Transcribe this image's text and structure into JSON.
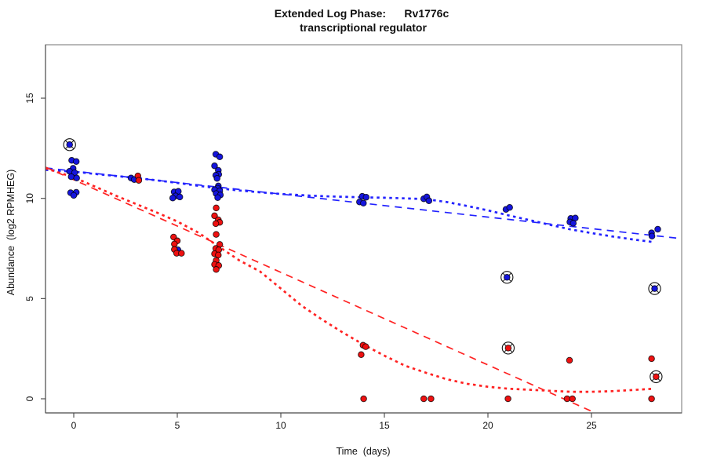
{
  "title": {
    "line1": "Extended Log Phase:      Rv1776c",
    "line2": "transcriptional regulator"
  },
  "axes": {
    "x": {
      "label": "Time  (days)",
      "ticks": [
        0,
        5,
        10,
        15,
        20,
        25
      ]
    },
    "y": {
      "label": "Abundance  (log2 RPMHEG)",
      "ticks": [
        0,
        5,
        10,
        15
      ]
    }
  },
  "colors": {
    "blue": "#1515dd",
    "red": "#ee1111",
    "blue_line": "#2222ff",
    "red_line": "#ff2222",
    "marker_outline": "#000000"
  },
  "chart_data": {
    "type": "scatter",
    "title": "Extended Log Phase: Rv1776c transcriptional regulator",
    "xlabel": "Time (days)",
    "ylabel": "Abundance (log2 RPMHEG)",
    "xlim": [
      -1.364,
      29.356
    ],
    "ylim": [
      -0.705,
      17.665
    ],
    "grid": false,
    "legend": "none",
    "series": [
      {
        "name": "blue",
        "points": [
          [
            -0.1,
            11.9
          ],
          [
            0.12,
            11.84
          ],
          [
            -0.03,
            11.5
          ],
          [
            -0.2,
            11.35
          ],
          [
            0.04,
            11.28
          ],
          [
            -0.12,
            11.08
          ],
          [
            0.14,
            11.02
          ],
          [
            -0.15,
            10.28
          ],
          [
            0.12,
            10.3
          ],
          [
            0.0,
            10.15
          ],
          [
            2.77,
            11.02
          ],
          [
            2.92,
            10.94
          ],
          [
            4.85,
            10.32
          ],
          [
            5.05,
            10.35
          ],
          [
            4.92,
            10.12
          ],
          [
            5.12,
            10.07
          ],
          [
            4.78,
            10.02
          ],
          [
            5.03,
            7.43
          ],
          [
            6.86,
            12.2
          ],
          [
            7.05,
            12.07
          ],
          [
            6.8,
            11.62
          ],
          [
            6.98,
            11.4
          ],
          [
            7.0,
            11.2
          ],
          [
            6.86,
            11.15
          ],
          [
            6.92,
            11.0
          ],
          [
            6.98,
            10.62
          ],
          [
            6.95,
            10.5
          ],
          [
            6.8,
            10.43
          ],
          [
            7.05,
            10.37
          ],
          [
            6.88,
            10.24
          ],
          [
            7.08,
            10.17
          ],
          [
            6.95,
            10.04
          ],
          [
            13.93,
            10.1
          ],
          [
            14.12,
            10.06
          ],
          [
            13.8,
            9.82
          ],
          [
            13.99,
            9.76
          ],
          [
            16.9,
            9.98
          ],
          [
            17.05,
            10.07
          ],
          [
            17.15,
            9.88
          ],
          [
            20.87,
            9.45
          ],
          [
            21.05,
            9.55
          ],
          [
            24.0,
            9.0
          ],
          [
            24.22,
            9.02
          ],
          [
            23.96,
            8.82
          ],
          [
            24.12,
            8.76
          ],
          [
            28.2,
            8.46
          ],
          [
            27.9,
            8.28
          ],
          [
            27.92,
            8.12
          ]
        ],
        "circled_points": [
          [
            -0.2,
            12.68
          ],
          [
            20.92,
            6.06
          ],
          [
            28.05,
            5.5
          ]
        ]
      },
      {
        "name": "red",
        "points": [
          [
            3.1,
            11.12
          ],
          [
            3.14,
            10.9
          ],
          [
            4.82,
            8.07
          ],
          [
            5.0,
            7.88
          ],
          [
            4.86,
            7.72
          ],
          [
            4.86,
            7.45
          ],
          [
            4.97,
            7.26
          ],
          [
            5.2,
            7.26
          ],
          [
            6.88,
            9.52
          ],
          [
            6.8,
            9.13
          ],
          [
            6.98,
            8.93
          ],
          [
            7.05,
            8.8
          ],
          [
            6.86,
            8.74
          ],
          [
            6.88,
            8.2
          ],
          [
            7.05,
            7.7
          ],
          [
            6.86,
            7.5
          ],
          [
            7.0,
            7.43
          ],
          [
            6.8,
            7.24
          ],
          [
            6.98,
            7.17
          ],
          [
            6.88,
            6.9
          ],
          [
            6.8,
            6.7
          ],
          [
            7.0,
            6.65
          ],
          [
            6.88,
            6.45
          ],
          [
            13.97,
            2.67
          ],
          [
            14.1,
            2.6
          ],
          [
            13.88,
            2.2
          ],
          [
            14.0,
            0.0
          ],
          [
            16.9,
            0.0
          ],
          [
            17.25,
            0.0
          ],
          [
            20.97,
            0.0
          ],
          [
            23.94,
            1.92
          ],
          [
            23.82,
            0.0
          ],
          [
            24.08,
            0.0
          ],
          [
            27.9,
            2.0
          ],
          [
            27.9,
            0.0
          ]
        ],
        "circled_points": [
          [
            20.98,
            2.53
          ],
          [
            28.12,
            1.1
          ]
        ]
      }
    ],
    "trend_lines": [
      {
        "name": "blue_linear_fit",
        "color": "blue",
        "style": "longdash",
        "points": [
          [
            -1.364,
            11.52
          ],
          [
            29.356,
            7.99
          ]
        ]
      },
      {
        "name": "blue_loess_fit",
        "color": "blue",
        "style": "dotted",
        "points": [
          [
            -1.364,
            11.42
          ],
          [
            0,
            11.33
          ],
          [
            1,
            11.22
          ],
          [
            2,
            11.12
          ],
          [
            3,
            11.02
          ],
          [
            4,
            10.9
          ],
          [
            5,
            10.77
          ],
          [
            6,
            10.63
          ],
          [
            7,
            10.5
          ],
          [
            8,
            10.39
          ],
          [
            9,
            10.3
          ],
          [
            10,
            10.22
          ],
          [
            11,
            10.16
          ],
          [
            12,
            10.11
          ],
          [
            13,
            10.08
          ],
          [
            14,
            10.05
          ],
          [
            15,
            10.03
          ],
          [
            16,
            10.0
          ],
          [
            17,
            9.96
          ],
          [
            18,
            9.82
          ],
          [
            19,
            9.62
          ],
          [
            20,
            9.4
          ],
          [
            21,
            9.15
          ],
          [
            22,
            8.92
          ],
          [
            23,
            8.68
          ],
          [
            24,
            8.45
          ],
          [
            25,
            8.27
          ],
          [
            26,
            8.1
          ],
          [
            27,
            7.95
          ],
          [
            28,
            7.82
          ]
        ]
      },
      {
        "name": "red_linear_fit",
        "color": "red",
        "style": "longdash",
        "points": [
          [
            -1.364,
            11.56
          ],
          [
            25.18,
            -0.705
          ]
        ]
      },
      {
        "name": "red_loess_fit",
        "color": "red",
        "style": "dotted",
        "points": [
          [
            -1.364,
            11.5
          ],
          [
            0,
            11.05
          ],
          [
            1,
            10.6
          ],
          [
            2,
            10.15
          ],
          [
            3,
            9.72
          ],
          [
            4,
            9.3
          ],
          [
            5,
            8.85
          ],
          [
            6,
            8.3
          ],
          [
            7,
            7.6
          ],
          [
            8,
            6.9
          ],
          [
            9,
            6.35
          ],
          [
            10,
            5.5
          ],
          [
            11,
            4.65
          ],
          [
            12,
            3.95
          ],
          [
            13,
            3.3
          ],
          [
            14,
            2.7
          ],
          [
            15,
            2.15
          ],
          [
            16,
            1.65
          ],
          [
            17,
            1.3
          ],
          [
            18,
            0.98
          ],
          [
            19,
            0.75
          ],
          [
            20,
            0.6
          ],
          [
            21,
            0.5
          ],
          [
            22,
            0.45
          ],
          [
            23,
            0.4
          ],
          [
            24,
            0.35
          ],
          [
            25,
            0.35
          ],
          [
            26,
            0.38
          ],
          [
            27,
            0.44
          ],
          [
            28,
            0.5
          ]
        ]
      }
    ]
  }
}
